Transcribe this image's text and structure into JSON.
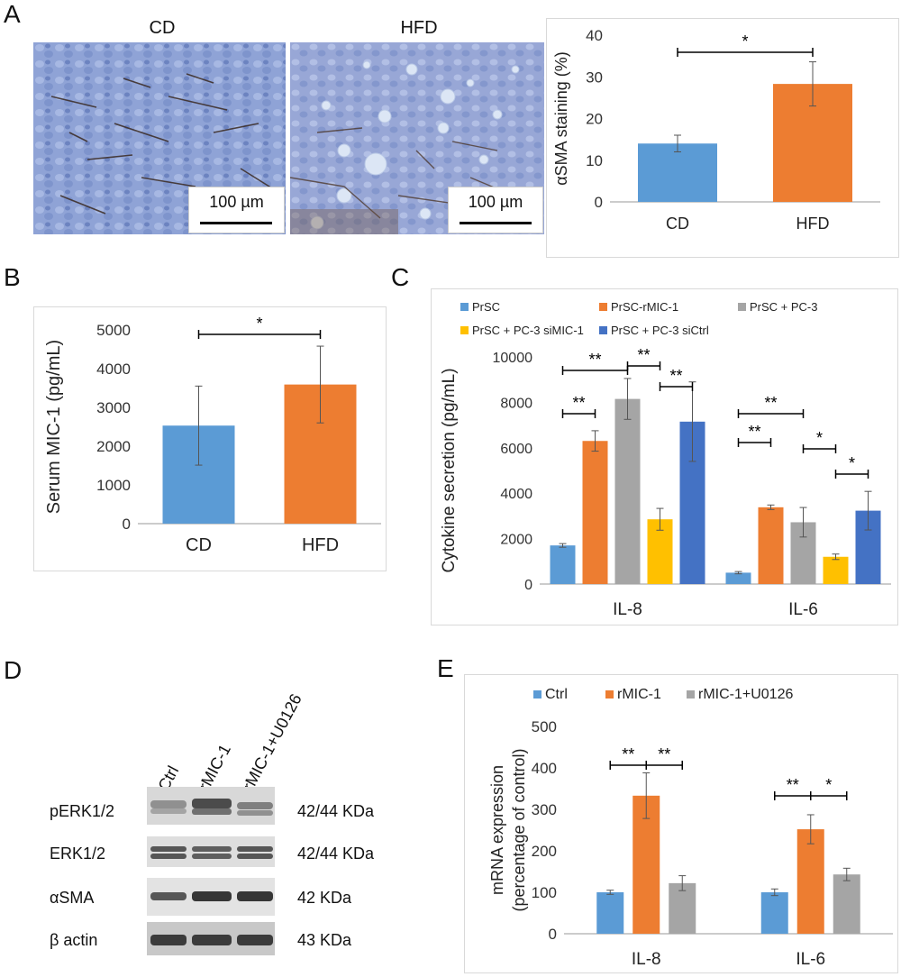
{
  "panels": {
    "A": {
      "letter": "A",
      "image_labels": [
        "CD",
        "HFD"
      ],
      "scale_bar_label": "100 µm",
      "chart_data": {
        "type": "bar",
        "categories": [
          "CD",
          "HFD"
        ],
        "values": [
          14,
          28.3
        ],
        "errors": [
          2,
          5.3
        ],
        "colors": [
          "#5b9bd5",
          "#ed7d31"
        ],
        "ylabel": "αSMA staining (%)",
        "ylim": [
          0,
          40
        ],
        "yticks": [
          0,
          10,
          20,
          30,
          40
        ],
        "significance": [
          {
            "from": 0,
            "to": 1,
            "label": "*"
          }
        ]
      }
    },
    "B": {
      "letter": "B",
      "chart_data": {
        "type": "bar",
        "categories": [
          "CD",
          "HFD"
        ],
        "values": [
          2530,
          3590
        ],
        "errors": [
          1020,
          990
        ],
        "colors": [
          "#5b9bd5",
          "#ed7d31"
        ],
        "ylabel": "Serum MIC-1 (pg/mL)",
        "ylim": [
          0,
          5000
        ],
        "yticks": [
          0,
          1000,
          2000,
          3000,
          4000,
          5000
        ],
        "significance": [
          {
            "from": 0,
            "to": 1,
            "label": "*"
          }
        ]
      }
    },
    "C": {
      "letter": "C",
      "chart_data": {
        "type": "bar",
        "categories": [
          "IL-8",
          "IL-6"
        ],
        "series": [
          {
            "name": "PrSC",
            "color": "#5b9bd5",
            "values": [
              1700,
              500
            ],
            "errors": [
              80,
              50
            ]
          },
          {
            "name": "PrSC-rMIC-1",
            "color": "#ed7d31",
            "values": [
              6300,
              3380
            ],
            "errors": [
              450,
              100
            ]
          },
          {
            "name": "PrSC + PC-3",
            "color": "#a5a5a5",
            "values": [
              8150,
              2720
            ],
            "errors": [
              900,
              650
            ]
          },
          {
            "name": "PrSC + PC-3 siMIC-1",
            "color": "#ffc000",
            "values": [
              2850,
              1200
            ],
            "errors": [
              480,
              120
            ]
          },
          {
            "name": "PrSC + PC-3 siCtrl",
            "color": "#4472c4",
            "values": [
              7150,
              3230
            ],
            "errors": [
              1750,
              850
            ]
          }
        ],
        "ylabel": "Cytokine secretion (pg/mL)",
        "ylim": [
          0,
          10000
        ],
        "yticks": [
          0,
          2000,
          4000,
          6000,
          8000,
          10000
        ],
        "legend": "top",
        "significance": [
          {
            "group": 0,
            "from": 0,
            "to": 1,
            "label": "**"
          },
          {
            "group": 0,
            "from": 0,
            "to": 2,
            "label": "**"
          },
          {
            "group": 0,
            "from": 2,
            "to": 3,
            "label": "**"
          },
          {
            "group": 0,
            "from": 3,
            "to": 4,
            "label": "**"
          },
          {
            "group": 1,
            "from": 0,
            "to": 2,
            "label": "**"
          },
          {
            "group": 1,
            "from": 0,
            "to": 1,
            "label": "**"
          },
          {
            "group": 1,
            "from": 2,
            "to": 3,
            "label": "*"
          },
          {
            "group": 1,
            "from": 3,
            "to": 4,
            "label": "*"
          }
        ]
      }
    },
    "D": {
      "letter": "D",
      "lanes": [
        "Ctrl",
        "rMIC-1",
        "rMIC-1+U0126"
      ],
      "rows": [
        {
          "protein": "pERK1/2",
          "size": "42/44 KDa"
        },
        {
          "protein": "ERK1/2",
          "size": "42/44 KDa"
        },
        {
          "protein": "αSMA",
          "size": "42 KDa"
        },
        {
          "protein": "β actin",
          "size": "43 KDa"
        }
      ]
    },
    "E": {
      "letter": "E",
      "chart_data": {
        "type": "bar",
        "categories": [
          "IL-8",
          "IL-6"
        ],
        "series": [
          {
            "name": "Ctrl",
            "color": "#5b9bd5",
            "values": [
              100,
              100
            ],
            "errors": [
              5,
              8
            ]
          },
          {
            "name": "rMIC-1",
            "color": "#ed7d31",
            "values": [
              333,
              252
            ],
            "errors": [
              55,
              35
            ]
          },
          {
            "name": "rMIC-1+U0126",
            "color": "#a5a5a5",
            "values": [
              122,
              143
            ],
            "errors": [
              18,
              15
            ]
          }
        ],
        "ylabel": "mRNA expression (percentage of control)",
        "ylabel_lines": [
          "mRNA expression",
          "(percentage of control)"
        ],
        "ylim": [
          0,
          500
        ],
        "yticks": [
          0,
          100,
          200,
          300,
          400,
          500
        ],
        "legend": "top",
        "significance": [
          {
            "group": 0,
            "from": 0,
            "to": 1,
            "label": "**"
          },
          {
            "group": 0,
            "from": 1,
            "to": 2,
            "label": "**"
          },
          {
            "group": 1,
            "from": 0,
            "to": 1,
            "label": "**"
          },
          {
            "group": 1,
            "from": 1,
            "to": 2,
            "label": "*"
          }
        ]
      }
    }
  }
}
